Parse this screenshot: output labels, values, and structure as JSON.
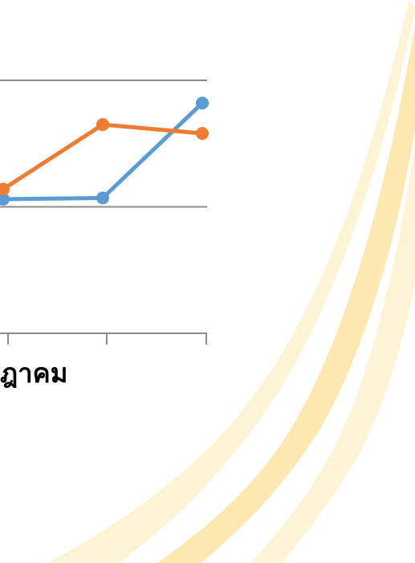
{
  "colors": {
    "swoosh": "#fde7ae",
    "swoosh_light": "#fef2cf",
    "grid": "#8c8c8c",
    "series_blue": "#5b9bd5",
    "series_orange": "#ed7d31"
  },
  "chart_data": {
    "type": "line",
    "xlabel": "ฎาคม",
    "ylabel": "",
    "title": "",
    "grid": true,
    "x_visible_index": [
      0,
      1,
      2
    ],
    "series": [
      {
        "color": "#5b9bd5",
        "values": [
          1.06,
          1.07,
          1.82
        ]
      },
      {
        "color": "#ed7d31",
        "values": [
          1.14,
          1.65,
          1.58
        ]
      }
    ],
    "ylim": [
      0,
      2
    ]
  }
}
